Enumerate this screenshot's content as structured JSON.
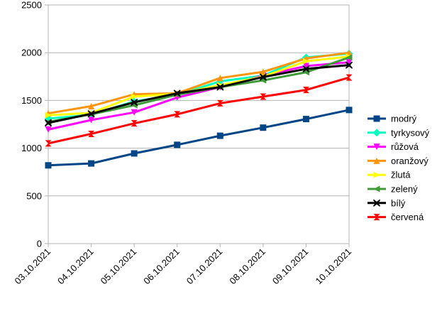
{
  "chart_data": {
    "type": "line",
    "title": "",
    "xlabel": "",
    "ylabel": "",
    "x": [
      "03.10.2021",
      "04.10.2021",
      "05.10.2021",
      "06.10.2021",
      "07.10.2021",
      "08.10.2021",
      "09.10.2021",
      "10.10.2021"
    ],
    "ylim": [
      0,
      2500
    ],
    "yticks": [
      0,
      500,
      1000,
      1500,
      2000,
      2500
    ],
    "grid": "horizontal",
    "legend_position": "right",
    "series": [
      {
        "name": "modrý",
        "color": "#004586",
        "marker": "square",
        "values": [
          820,
          840,
          945,
          1035,
          1130,
          1215,
          1305,
          1400
        ]
      },
      {
        "name": "tyrkysový",
        "color": "#00FFBF",
        "marker": "diamond",
        "values": [
          1310,
          1350,
          1490,
          1560,
          1700,
          1760,
          1950,
          1990
        ]
      },
      {
        "name": "růžová",
        "color": "#FF00FF",
        "marker": "triangle-down",
        "values": [
          1195,
          1295,
          1375,
          1530,
          1640,
          1760,
          1860,
          1900
        ]
      },
      {
        "name": "oranžový",
        "color": "#FF950E",
        "marker": "triangle-up",
        "values": [
          1365,
          1440,
          1565,
          1575,
          1735,
          1800,
          1940,
          2000
        ]
      },
      {
        "name": "žlutá",
        "color": "#FFFF00",
        "marker": "triangle-right",
        "values": [
          1345,
          1370,
          1540,
          1570,
          1660,
          1750,
          1910,
          1960
        ]
      },
      {
        "name": "zelený",
        "color": "#3E9B37",
        "marker": "triangle-left",
        "values": [
          1275,
          1355,
          1450,
          1560,
          1640,
          1710,
          1795,
          1950
        ]
      },
      {
        "name": "bílý",
        "color": "#000000",
        "marker": "x",
        "values": [
          1265,
          1360,
          1480,
          1575,
          1640,
          1745,
          1830,
          1870
        ]
      },
      {
        "name": "červená",
        "color": "#FF0000",
        "marker": "hourglass",
        "values": [
          1050,
          1150,
          1260,
          1355,
          1470,
          1540,
          1610,
          1740
        ]
      }
    ]
  }
}
